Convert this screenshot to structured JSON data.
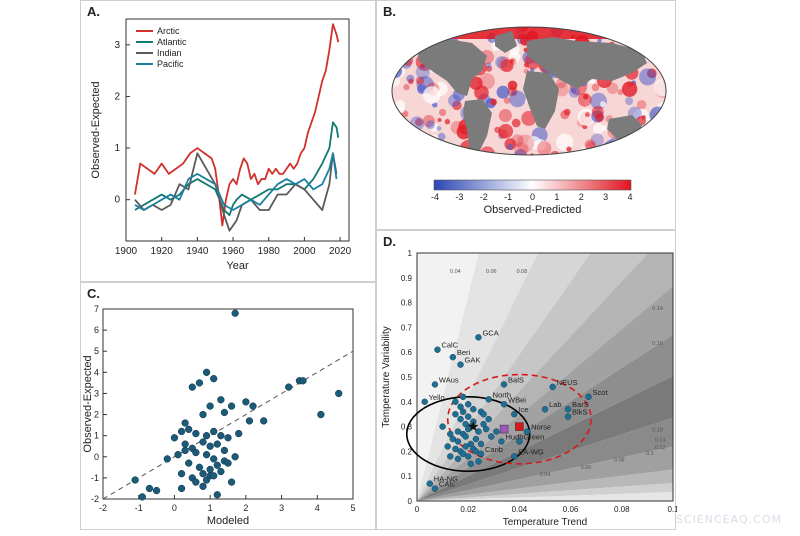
{
  "watermark": "SCIENCEAQ.COM",
  "panels": {
    "a": {
      "letter": "A."
    },
    "b": {
      "letter": "B."
    },
    "c": {
      "letter": "C."
    },
    "d": {
      "letter": "D."
    }
  },
  "chart_data": [
    {
      "panel": "A",
      "type": "line",
      "xlabel": "Year",
      "ylabel": "Observed-Expected",
      "xlim": [
        1900,
        2025
      ],
      "ylim": [
        -0.8,
        3.5
      ],
      "xticks": [
        1900,
        1920,
        1940,
        1960,
        1980,
        2000,
        2020
      ],
      "yticks": [
        0,
        1,
        2,
        3
      ],
      "legend_position": "top-left",
      "series": [
        {
          "name": "Arctic",
          "color": "#d0312d",
          "x": [
            1905,
            1908,
            1912,
            1916,
            1920,
            1924,
            1928,
            1932,
            1936,
            1940,
            1944,
            1948,
            1950,
            1952,
            1954,
            1956,
            1958,
            1960,
            1962,
            1964,
            1966,
            1968,
            1970,
            1972,
            1974,
            1976,
            1978,
            1980,
            1982,
            1984,
            1986,
            1988,
            1990,
            1992,
            1994,
            1996,
            1998,
            2000,
            2002,
            2004,
            2006,
            2008,
            2010,
            2012,
            2014,
            2016,
            2018,
            2019
          ],
          "y": [
            0.1,
            0.7,
            0.6,
            0.5,
            0.7,
            0.5,
            0.6,
            0.7,
            0.9,
            1.0,
            0.9,
            0.8,
            0.6,
            0.1,
            -0.5,
            0.0,
            0.3,
            0.4,
            0.3,
            0.6,
            0.8,
            0.7,
            0.4,
            0.5,
            0.3,
            0.4,
            0.4,
            0.6,
            0.5,
            0.6,
            0.5,
            0.5,
            0.6,
            0.7,
            0.6,
            0.7,
            0.9,
            1.0,
            1.3,
            1.5,
            1.7,
            2.0,
            2.3,
            2.5,
            2.9,
            3.4,
            3.2,
            3.05
          ]
        },
        {
          "name": "Atlantic",
          "color": "#127a6e",
          "x": [
            1905,
            1910,
            1915,
            1920,
            1925,
            1930,
            1935,
            1940,
            1945,
            1950,
            1955,
            1958,
            1960,
            1962,
            1965,
            1970,
            1975,
            1980,
            1985,
            1990,
            1995,
            2000,
            2005,
            2010,
            2014,
            2016,
            2018,
            2019
          ],
          "y": [
            -0.2,
            -0.1,
            0.0,
            0.1,
            0.0,
            0.1,
            0.3,
            0.4,
            0.3,
            0.2,
            -0.2,
            -0.3,
            -0.1,
            0.0,
            0.1,
            0.0,
            0.1,
            0.2,
            0.2,
            0.3,
            0.3,
            0.2,
            0.4,
            0.7,
            1.0,
            1.5,
            1.4,
            1.2
          ]
        },
        {
          "name": "Indian",
          "color": "#5a5a5a",
          "x": [
            1905,
            1910,
            1915,
            1920,
            1925,
            1930,
            1935,
            1940,
            1945,
            1950,
            1955,
            1958,
            1962,
            1965,
            1970,
            1975,
            1980,
            1985,
            1990,
            1995,
            2000,
            2005,
            2010,
            2014,
            2016,
            2018
          ],
          "y": [
            0.0,
            -0.2,
            -0.1,
            -0.2,
            -0.1,
            0.3,
            0.2,
            0.9,
            0.6,
            0.3,
            -0.3,
            -0.6,
            -0.4,
            -0.1,
            0.0,
            -0.2,
            -0.2,
            0.1,
            0.1,
            0.3,
            0.2,
            0.0,
            -0.2,
            0.3,
            0.9,
            0.5
          ]
        },
        {
          "name": "Pacific",
          "color": "#1a7fa0",
          "x": [
            1905,
            1910,
            1915,
            1920,
            1925,
            1930,
            1935,
            1940,
            1945,
            1950,
            1955,
            1960,
            1965,
            1970,
            1975,
            1980,
            1985,
            1990,
            1995,
            2000,
            2005,
            2010,
            2014,
            2016,
            2018
          ],
          "y": [
            -0.1,
            -0.2,
            -0.1,
            0.0,
            0.1,
            0.0,
            0.4,
            0.5,
            0.4,
            0.3,
            -0.1,
            -0.2,
            -0.1,
            0.0,
            -0.1,
            0.1,
            0.3,
            0.4,
            0.3,
            0.4,
            0.2,
            0.3,
            0.6,
            0.9,
            0.4
          ]
        }
      ]
    },
    {
      "panel": "B",
      "type": "heatmap",
      "colorbar_label": "Observed-Predicted",
      "colorbar_ticks": [
        -4,
        -3,
        -2,
        -1,
        0,
        1,
        2,
        3,
        4
      ],
      "colormap": {
        "low": "#2b46b4",
        "mid": "#ffffff",
        "high": "#e0141e"
      }
    },
    {
      "panel": "C",
      "type": "scatter",
      "xlabel": "Modeled",
      "ylabel": "Observed-Expected",
      "xlim": [
        -2,
        5
      ],
      "ylim": [
        -2,
        7
      ],
      "xticks": [
        -2,
        -1,
        0,
        1,
        2,
        3,
        4,
        5
      ],
      "yticks": [
        -2,
        -1,
        0,
        1,
        2,
        3,
        4,
        5,
        6,
        7
      ],
      "reference_line": {
        "style": "dashed",
        "x": [
          -2,
          5
        ],
        "y": [
          -2,
          5
        ]
      },
      "point_color": "#1c5a78",
      "x": [
        1.7,
        0.9,
        0.5,
        0.7,
        1.1,
        3.2,
        3.5,
        3.6,
        1.3,
        1.0,
        0.8,
        1.4,
        2.2,
        2.0,
        1.6,
        0.2,
        0.4,
        0.6,
        0.9,
        1.1,
        1.3,
        1.5,
        1.8,
        2.1,
        0.3,
        0.5,
        0.8,
        1.0,
        1.2,
        1.4,
        0.0,
        0.3,
        0.6,
        0.9,
        1.1,
        1.4,
        1.7,
        -0.2,
        0.1,
        0.4,
        0.7,
        1.0,
        1.2,
        1.5,
        0.2,
        0.5,
        0.8,
        1.0,
        1.3,
        0.6,
        0.9,
        1.1,
        -1.1,
        -0.7,
        -0.9,
        -0.5,
        0.2,
        0.8,
        1.2,
        1.6,
        4.1,
        4.6,
        2.5,
        0.3
      ],
      "y": [
        6.8,
        4.0,
        3.3,
        3.5,
        3.7,
        3.3,
        3.6,
        3.6,
        2.7,
        2.4,
        2.0,
        2.1,
        2.4,
        2.6,
        2.4,
        1.2,
        1.3,
        1.1,
        1.0,
        1.2,
        1.0,
        0.9,
        1.1,
        1.7,
        0.6,
        0.4,
        0.7,
        0.5,
        0.6,
        0.3,
        0.9,
        0.3,
        0.2,
        0.1,
        -0.1,
        -0.2,
        0.0,
        -0.1,
        0.1,
        -0.3,
        -0.5,
        -0.6,
        -0.4,
        -0.3,
        -0.8,
        -1.0,
        -0.8,
        -0.9,
        -0.7,
        -1.2,
        -1.1,
        -0.9,
        -1.1,
        -1.5,
        -1.9,
        -1.6,
        -1.5,
        -1.4,
        -1.8,
        -1.2,
        2.0,
        3.0,
        1.7,
        1.6
      ]
    },
    {
      "panel": "D",
      "type": "scatter",
      "xlabel": "Temperature Trend",
      "ylabel": "Temperature Variability",
      "xlim": [
        0,
        0.1
      ],
      "ylim": [
        0,
        1
      ],
      "xticks": [
        "0",
        "0.02",
        "0.04",
        "0.06",
        "0.08",
        "0.1"
      ],
      "yticks": [
        "0",
        "0.1",
        "0.2",
        "0.3",
        "0.4",
        "0.5",
        "0.6",
        "0.7",
        "0.8",
        "0.9",
        "1"
      ],
      "contour_labels": [
        {
          "text": "0.04",
          "x": 0.015,
          "y": 0.92
        },
        {
          "text": "0.06",
          "x": 0.029,
          "y": 0.92
        },
        {
          "text": "0.08",
          "x": 0.041,
          "y": 0.92
        },
        {
          "text": "0.14",
          "x": 0.094,
          "y": 0.77
        },
        {
          "text": "0.16",
          "x": 0.094,
          "y": 0.63
        },
        {
          "text": "0.18",
          "x": 0.094,
          "y": 0.28
        },
        {
          "text": "0.14",
          "x": 0.095,
          "y": 0.24
        },
        {
          "text": "0.12",
          "x": 0.095,
          "y": 0.21
        },
        {
          "text": "0.1",
          "x": 0.091,
          "y": 0.185
        },
        {
          "text": "0.08",
          "x": 0.079,
          "y": 0.16
        },
        {
          "text": "0.06",
          "x": 0.066,
          "y": 0.13
        },
        {
          "text": "0.04",
          "x": 0.05,
          "y": 0.1
        }
      ],
      "labeled_points": [
        {
          "label": "GCA",
          "x": 0.024,
          "y": 0.66
        },
        {
          "label": "CalC",
          "x": 0.008,
          "y": 0.61
        },
        {
          "label": "Beri",
          "x": 0.014,
          "y": 0.58
        },
        {
          "label": "GAK",
          "x": 0.017,
          "y": 0.55
        },
        {
          "label": "WAus",
          "x": 0.007,
          "y": 0.47
        },
        {
          "label": "Yello",
          "x": 0.003,
          "y": 0.4
        },
        {
          "label": "BalS",
          "x": 0.034,
          "y": 0.47
        },
        {
          "label": "North",
          "x": 0.028,
          "y": 0.41
        },
        {
          "label": "WBei",
          "x": 0.034,
          "y": 0.39
        },
        {
          "label": "NEUS",
          "x": 0.053,
          "y": 0.46
        },
        {
          "label": "Scot",
          "x": 0.067,
          "y": 0.42
        },
        {
          "label": "Lab",
          "x": 0.05,
          "y": 0.37
        },
        {
          "label": "BarS",
          "x": 0.059,
          "y": 0.37
        },
        {
          "label": "BlkS",
          "x": 0.059,
          "y": 0.34
        },
        {
          "label": "Ice",
          "x": 0.038,
          "y": 0.35
        },
        {
          "label": "Norse",
          "x": 0.043,
          "y": 0.28
        },
        {
          "label": "Hudb",
          "x": 0.033,
          "y": 0.24
        },
        {
          "label": "Green",
          "x": 0.04,
          "y": 0.24
        },
        {
          "label": "Carib",
          "x": 0.025,
          "y": 0.19
        },
        {
          "label": "EA-WG",
          "x": 0.038,
          "y": 0.18
        },
        {
          "label": "HA-NG",
          "x": 0.005,
          "y": 0.07
        },
        {
          "label": "CAtc",
          "x": 0.007,
          "y": 0.05
        }
      ],
      "unlabeled_points": {
        "x": [
          0.015,
          0.017,
          0.018,
          0.019,
          0.02,
          0.021,
          0.016,
          0.018,
          0.02,
          0.022,
          0.024,
          0.026,
          0.014,
          0.016,
          0.019,
          0.021,
          0.023,
          0.012,
          0.015,
          0.017,
          0.019,
          0.022,
          0.025,
          0.013,
          0.016,
          0.018,
          0.02,
          0.023,
          0.027,
          0.029,
          0.021,
          0.024,
          0.01,
          0.013,
          0.017,
          0.02,
          0.025,
          0.028,
          0.031,
          0.015,
          0.018,
          0.022,
          0.026
        ],
        "y": [
          0.35,
          0.33,
          0.36,
          0.31,
          0.34,
          0.3,
          0.28,
          0.27,
          0.29,
          0.32,
          0.28,
          0.31,
          0.25,
          0.24,
          0.26,
          0.23,
          0.25,
          0.22,
          0.21,
          0.2,
          0.22,
          0.21,
          0.23,
          0.18,
          0.17,
          0.19,
          0.18,
          0.2,
          0.29,
          0.26,
          0.15,
          0.16,
          0.3,
          0.27,
          0.38,
          0.39,
          0.36,
          0.33,
          0.28,
          0.4,
          0.42,
          0.37,
          0.35
        ]
      },
      "special_markers": [
        {
          "shape": "square",
          "color": "#d7191c",
          "x": 0.04,
          "y": 0.3
        },
        {
          "shape": "square",
          "color": "#9b59b6",
          "x": 0.034,
          "y": 0.29
        },
        {
          "shape": "star",
          "color": "#111111",
          "x": 0.022,
          "y": 0.3
        }
      ],
      "ellipses": [
        {
          "style": "solid",
          "color": "#000000",
          "cx": 0.02,
          "cy": 0.27,
          "rx": 0.024,
          "ry": 0.15
        },
        {
          "style": "dashed",
          "color": "#d7191c",
          "cx": 0.04,
          "cy": 0.33,
          "rx": 0.028,
          "ry": 0.18
        }
      ],
      "point_color": "#1f6f93"
    }
  ]
}
